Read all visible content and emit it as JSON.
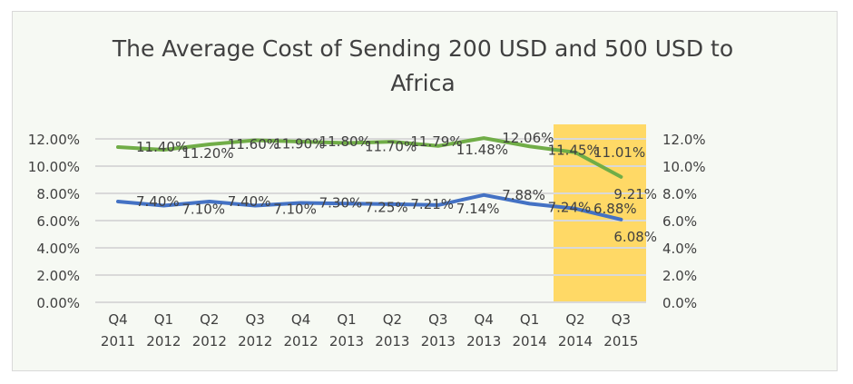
{
  "chart_data": {
    "type": "line",
    "title": "The Average Cost of Sending 200 USD and 500 USD to Africa",
    "title_lines": [
      "The Average Cost of Sending 200 USD and 500 USD to",
      "Africa"
    ],
    "categories": [
      [
        "Q4",
        "2011"
      ],
      [
        "Q1",
        "2012"
      ],
      [
        "Q2",
        "2012"
      ],
      [
        "Q3",
        "2012"
      ],
      [
        "Q4",
        "2012"
      ],
      [
        "Q1",
        "2013"
      ],
      [
        "Q2",
        "2013"
      ],
      [
        "Q3",
        "2013"
      ],
      [
        "Q4",
        "2013"
      ],
      [
        "Q1",
        "2014"
      ],
      [
        "Q2",
        "2014"
      ],
      [
        "Q3",
        "2015"
      ]
    ],
    "series": [
      {
        "color": "#70ad47",
        "values": [
          11.4,
          11.2,
          11.6,
          11.9,
          11.8,
          11.7,
          11.79,
          11.48,
          12.06,
          11.45,
          11.01,
          9.21
        ],
        "labels": [
          "11.40%",
          "11.20%",
          "11.60%",
          "11.90%",
          "11.80%",
          "11.70%",
          "11.79%",
          "11.48%",
          "12.06%",
          "11.45%",
          "11.01%",
          "9.21%"
        ]
      },
      {
        "color": "#4472c4",
        "values": [
          7.4,
          7.1,
          7.4,
          7.1,
          7.3,
          7.25,
          7.21,
          7.14,
          7.88,
          7.24,
          6.88,
          6.08
        ],
        "labels": [
          "7.40%",
          "7.10%",
          "7.40%",
          "7.10%",
          "7.30%",
          "7.25%",
          "7.21%",
          "7.14%",
          "7.88%",
          "7.24%",
          "6.88%",
          "6.08%"
        ]
      }
    ],
    "ylim": [
      0,
      12
    ],
    "left_ticks": [
      "0.00%",
      "2.00%",
      "4.00%",
      "6.00%",
      "8.00%",
      "10.00%",
      "12.00%"
    ],
    "right_ticks": [
      "0.0%",
      "2.0%",
      "4.0%",
      "6.0%",
      "8.0%",
      "10.0%",
      "12.0%"
    ],
    "highlight": {
      "from_category": "Q2 2014",
      "to_category": "Q3 2015",
      "color": "#ffd966"
    },
    "grid": true,
    "legend": "none"
  }
}
